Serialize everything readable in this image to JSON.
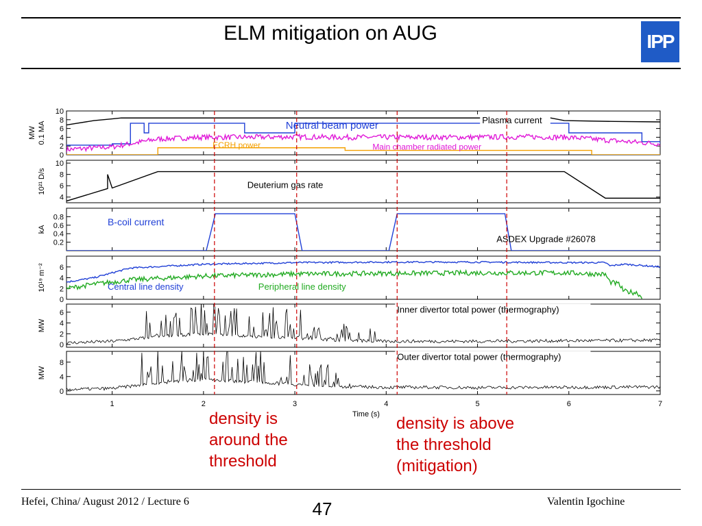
{
  "slide": {
    "title": "ELM mitigation on AUG",
    "logo_text": "IPP",
    "footer_left": "Hefei, China/ August 2012 / Lecture 6",
    "page_number": "47",
    "footer_right": "Valentin Igochine",
    "notes": [
      [
        "density is",
        "around the",
        "threshold"
      ],
      [
        "density is above",
        "the threshold",
        "(mitigation)"
      ]
    ],
    "colors": {
      "title_rule": "#000000",
      "note": "#cc0000",
      "logo": "#1f5bc6"
    }
  },
  "chart_data": {
    "type": "line",
    "xlabel": "Time (s)",
    "xlim": [
      0.5,
      7
    ],
    "xticks": [
      1,
      2,
      3,
      4,
      5,
      6,
      7
    ],
    "vlines": [
      2.12,
      3.02,
      4.12,
      5.32
    ],
    "shot_label": "ASDEX Upgrade #26078",
    "panels": [
      {
        "ylabel": [
          "MW",
          "0.1 MA"
        ],
        "ylim": [
          0,
          10
        ],
        "yticks": [
          0,
          2,
          4,
          6,
          8,
          10
        ],
        "series": [
          {
            "name": "Plasma current",
            "color": "#000000",
            "style": "smooth",
            "x": [
              0.5,
              0.8,
              1.0,
              1.1,
              2.0,
              3.0,
              4.0,
              5.0,
              5.8,
              5.95,
              6.5,
              7.0
            ],
            "y": [
              6.8,
              7.8,
              8.2,
              8.4,
              8.4,
              8.4,
              8.4,
              8.4,
              8.4,
              7.8,
              7.6,
              7.5
            ]
          },
          {
            "name": "Neutral beam power",
            "color": "#1f3fd6",
            "style": "step",
            "x": [
              0.5,
              0.95,
              1.0,
              1.2,
              1.35,
              1.4,
              2.0,
              2.4,
              2.45,
              3.0,
              4.0,
              5.0,
              5.95,
              6.0,
              6.7,
              6.8,
              7.0
            ],
            "y": [
              2.2,
              2.2,
              2.5,
              7.2,
              5.0,
              7.2,
              7.2,
              7.2,
              5.0,
              7.2,
              7.2,
              7.2,
              7.2,
              5.0,
              5.0,
              3.0,
              2.5
            ]
          },
          {
            "name": "Main chamber radiated power",
            "color": "#e018d8",
            "style": "noisy",
            "x": [
              0.5,
              1.0,
              1.5,
              2.0,
              2.5,
              3.0,
              3.5,
              4.0,
              4.5,
              5.0,
              5.5,
              6.0,
              6.5,
              7.0
            ],
            "y": [
              1.2,
              1.8,
              3.6,
              4.0,
              4.0,
              4.1,
              4.0,
              4.0,
              4.0,
              4.0,
              4.1,
              4.0,
              3.2,
              2.5
            ],
            "noise": 0.6
          },
          {
            "name": "ECRH power",
            "color": "#f4a000",
            "style": "step",
            "x": [
              0.5,
              1.5,
              2.5,
              3.5,
              3.55,
              6.2,
              6.25,
              7.0
            ],
            "y": [
              0,
              1.6,
              1.6,
              1.6,
              1.0,
              1.0,
              0,
              0
            ]
          }
        ],
        "labels": [
          {
            "series": "Neutral beam power",
            "x": 2.9,
            "y": 5.9,
            "color": "#1f3fd6",
            "size": 15,
            "anchor": "start"
          },
          {
            "series": "Plasma current",
            "x": 5.05,
            "y": 7.2,
            "color": "#000000",
            "size": 13,
            "anchor": "start",
            "box": true
          },
          {
            "series": "ECRH power",
            "x": 2.1,
            "y": 1.6,
            "color": "#f4a000",
            "size": 12,
            "anchor": "start"
          },
          {
            "series": "Main chamber radiated power",
            "x": 3.85,
            "y": 1.2,
            "color": "#e018d8",
            "size": 12,
            "anchor": "start"
          }
        ]
      },
      {
        "ylabel": [
          "10²¹ D/s"
        ],
        "ylim": [
          3,
          10.5
        ],
        "yticks": [
          4,
          6,
          8,
          10
        ],
        "series": [
          {
            "name": "Deuterium gas rate",
            "color": "#000000",
            "style": "smooth",
            "x": [
              0.5,
              0.95,
              0.95,
              1.0,
              1.5,
              2.0,
              3.0,
              4.0,
              5.0,
              5.95,
              6.4,
              7.0
            ],
            "y": [
              3.3,
              5.5,
              8.0,
              5.6,
              8.5,
              8.5,
              8.5,
              8.5,
              8.5,
              8.5,
              3.8,
              3.8
            ]
          }
        ],
        "labels": [
          {
            "series": "Deuterium gas rate",
            "x": 2.48,
            "y": 5.6,
            "color": "#000000",
            "size": 13,
            "anchor": "start"
          }
        ]
      },
      {
        "ylabel": [
          "kA"
        ],
        "ylim": [
          0,
          1.0
        ],
        "yticks": [
          0.2,
          0.4,
          0.6,
          0.8
        ],
        "series": [
          {
            "name": "B-coil current",
            "color": "#1f3fd6",
            "style": "smooth",
            "x": [
              0.5,
              2.03,
              2.13,
              3.0,
              3.08,
              4.03,
              4.12,
              5.3,
              5.37,
              7.0
            ],
            "y": [
              0,
              0,
              0.87,
              0.87,
              0,
              0,
              0.87,
              0.87,
              0,
              0
            ]
          }
        ],
        "labels": [
          {
            "series": "B-coil current",
            "x": 0.95,
            "y": 0.6,
            "color": "#1f3fd6",
            "size": 14,
            "anchor": "start"
          }
        ]
      },
      {
        "ylabel": [
          "10¹⁹ m⁻²"
        ],
        "ylim": [
          0,
          8
        ],
        "yticks": [
          0,
          2,
          4,
          6
        ],
        "series": [
          {
            "name": "Central line density",
            "color": "#1f3fd6",
            "style": "noisy",
            "x": [
              0.5,
              0.8,
              1.2,
              2.0,
              3.0,
              4.0,
              5.0,
              6.0,
              6.4,
              6.45,
              6.6,
              6.7,
              7.0
            ],
            "y": [
              3.2,
              4.0,
              5.8,
              6.5,
              6.8,
              6.9,
              6.9,
              6.8,
              6.8,
              6.2,
              6.5,
              6.4,
              6.0
            ],
            "noise": 0.15
          },
          {
            "name": "Peripheral line density",
            "color": "#22aa22",
            "style": "noisy",
            "x": [
              0.5,
              0.8,
              1.2,
              2.0,
              3.0,
              4.0,
              5.0,
              6.0,
              6.4,
              6.45,
              6.55,
              6.6,
              6.75,
              6.8
            ],
            "y": [
              2.0,
              2.8,
              3.6,
              4.3,
              4.7,
              4.8,
              4.9,
              4.9,
              4.6,
              3.2,
              2.8,
              1.5,
              1.2,
              0.3
            ],
            "noise": 0.45
          }
        ],
        "labels": [
          {
            "series": "Central line density",
            "x": 0.95,
            "y": 1.8,
            "color": "#1f3fd6",
            "size": 13,
            "anchor": "start"
          },
          {
            "series": "Peripheral line density",
            "x": 2.6,
            "y": 1.8,
            "color": "#22aa22",
            "size": 13,
            "anchor": "start"
          }
        ]
      },
      {
        "ylabel": [
          "MW"
        ],
        "ylim": [
          -0.5,
          7.5
        ],
        "yticks": [
          0,
          2,
          4,
          6
        ],
        "series": [
          {
            "name": "Inner divertor total power (thermography)",
            "color": "#000000",
            "style": "spiky",
            "x": [
              0.5,
              1.0,
              1.5,
              2.0,
              2.5,
              3.0,
              3.5,
              4.0,
              4.5,
              5.0,
              6.0,
              7.0
            ],
            "y": [
              0.3,
              0.6,
              1.5,
              2.0,
              1.5,
              1.2,
              0.8,
              0.6,
              0.6,
              0.6,
              0.7,
              0.8
            ],
            "noise": 0.3,
            "spike_x": [
              1.3,
              3.9
            ],
            "spike_max": 6.0
          }
        ],
        "labels": [
          {
            "series": "Inner divertor total power (thermography)",
            "x": 4.12,
            "y": 5.9,
            "color": "#000000",
            "size": 13,
            "anchor": "start",
            "box": true
          }
        ]
      },
      {
        "ylabel": [
          "MW"
        ],
        "ylim": [
          -1,
          11
        ],
        "yticks": [
          0,
          4,
          8
        ],
        "series": [
          {
            "name": "Outer divertor total power (thermography)",
            "color": "#000000",
            "style": "spiky",
            "x": [
              0.5,
              1.0,
              1.5,
              2.0,
              2.5,
              3.0,
              3.5,
              4.0,
              4.5,
              5.0,
              6.0,
              7.0
            ],
            "y": [
              0.4,
              0.7,
              2.2,
              3.2,
              2.5,
              1.8,
              1.2,
              1.0,
              1.0,
              0.9,
              1.0,
              1.1
            ],
            "noise": 0.45,
            "spike_x": [
              1.3,
              3.6
            ],
            "spike_max": 10.0
          }
        ],
        "labels": [
          {
            "series": "Outer divertor total power (thermography)",
            "x": 4.12,
            "y": 8.6,
            "color": "#000000",
            "size": 13,
            "anchor": "start",
            "box": true
          }
        ]
      }
    ]
  }
}
